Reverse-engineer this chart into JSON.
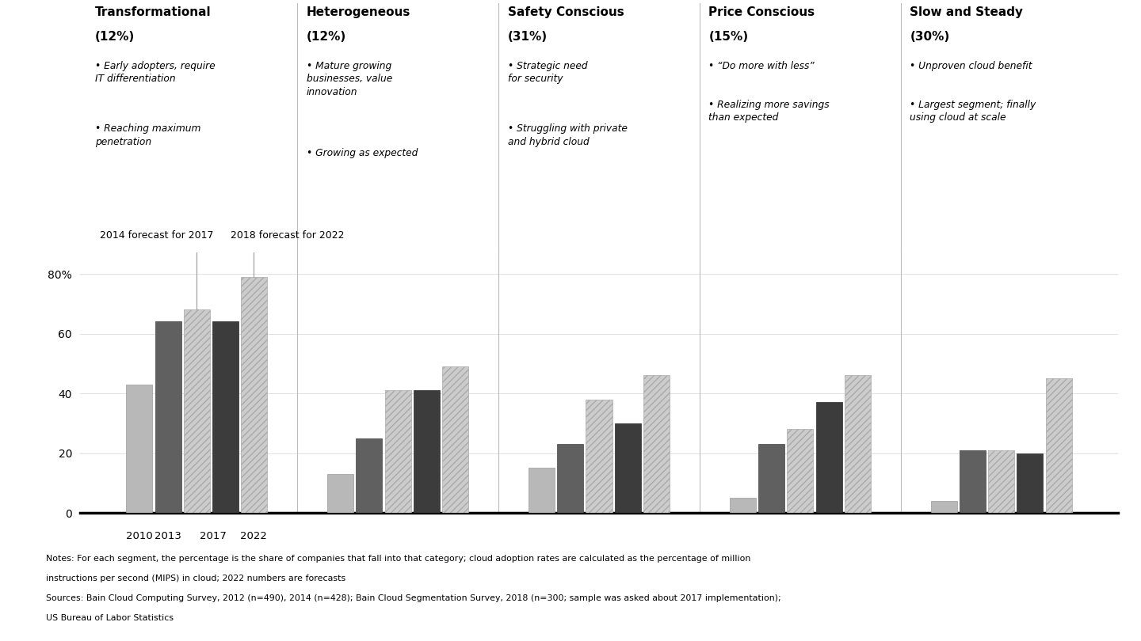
{
  "segments": [
    {
      "name_line1": "Transformational",
      "name_line2": "(12%)",
      "bullets": [
        "Early adopters, require\nIT differentiation",
        "Reaching maximum\npenetration"
      ],
      "values": [
        43,
        64,
        68,
        64,
        79
      ]
    },
    {
      "name_line1": "Heterogeneous",
      "name_line2": "(12%)",
      "bullets": [
        "Mature growing\nbusinesses, value\ninnovation",
        "Growing as expected"
      ],
      "values": [
        13,
        25,
        41,
        41,
        49
      ]
    },
    {
      "name_line1": "Safety Conscious",
      "name_line2": "(31%)",
      "bullets": [
        "Strategic need\nfor security",
        "Struggling with private\nand hybrid cloud"
      ],
      "values": [
        15,
        23,
        38,
        30,
        46
      ]
    },
    {
      "name_line1": "Price Conscious",
      "name_line2": "(15%)",
      "bullets": [
        "“Do more with less”",
        "Realizing more savings\nthan expected"
      ],
      "values": [
        5,
        23,
        28,
        37,
        46
      ]
    },
    {
      "name_line1": "Slow and Steady",
      "name_line2": "(30%)",
      "bullets": [
        "Unproven cloud benefit",
        "Largest segment; finally\nusing cloud at scale"
      ],
      "values": [
        4,
        21,
        21,
        20,
        45
      ]
    }
  ],
  "bar_styles": [
    {
      "color": "#b8b8b8",
      "hatch": null,
      "ec": "#999999"
    },
    {
      "color": "#606060",
      "hatch": null,
      "ec": "#444444"
    },
    {
      "color": "#cccccc",
      "hatch": "////",
      "ec": "#aaaaaa"
    },
    {
      "color": "#3c3c3c",
      "hatch": null,
      "ec": "#2a2a2a"
    },
    {
      "color": "#cccccc",
      "hatch": "////",
      "ec": "#aaaaaa"
    }
  ],
  "bar_width": 0.13,
  "bar_gap": 0.012,
  "ylim": [
    0,
    88
  ],
  "yticks": [
    0,
    20,
    40,
    60,
    80
  ],
  "ytick_labels": [
    "0",
    "20",
    "40",
    "60",
    "80%"
  ],
  "annotation_fc2014": "2014 forecast for 2017",
  "annotation_fc2018": "2018 forecast for 2022",
  "separator_color": "#bbbbbb",
  "grid_color": "#dddddd",
  "notes": [
    "Notes: For each segment, the percentage is the share of companies that fall into that category; cloud adoption rates are calculated as the percentage of million",
    "instructions per second (MIPS) in cloud; 2022 numbers are forecasts",
    "Sources: Bain Cloud Computing Survey, 2012 (n=490), 2014 (n=428); Bain Cloud Segmentation Survey, 2018 (n=300; sample was asked about 2017 implementation);",
    "US Bureau of Labor Statistics"
  ]
}
